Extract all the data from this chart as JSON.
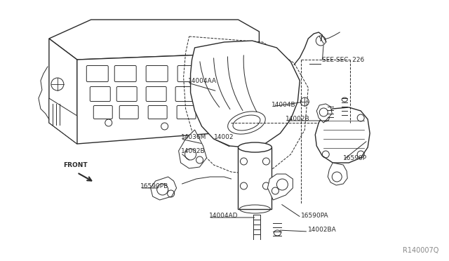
{
  "background_color": "#ffffff",
  "line_color": "#2a2a2a",
  "label_color": "#2a2a2a",
  "figure_width": 6.4,
  "figure_height": 3.72,
  "dpi": 100,
  "watermark": "R140007Q",
  "labels": [
    [
      "14004AA",
      268,
      118
    ],
    [
      "14004B",
      388,
      152
    ],
    [
      "14002B",
      408,
      172
    ],
    [
      "14036M",
      258,
      198
    ],
    [
      "14002",
      305,
      198
    ],
    [
      "14002B",
      258,
      218
    ],
    [
      "16590PB",
      200,
      268
    ],
    [
      "14004AD",
      298,
      310
    ],
    [
      "16590PA",
      430,
      310
    ],
    [
      "14002BA",
      440,
      330
    ],
    [
      "16590P",
      490,
      228
    ],
    [
      "SEE SEC. 226",
      460,
      88
    ],
    [
      "FRONT",
      90,
      238
    ]
  ]
}
